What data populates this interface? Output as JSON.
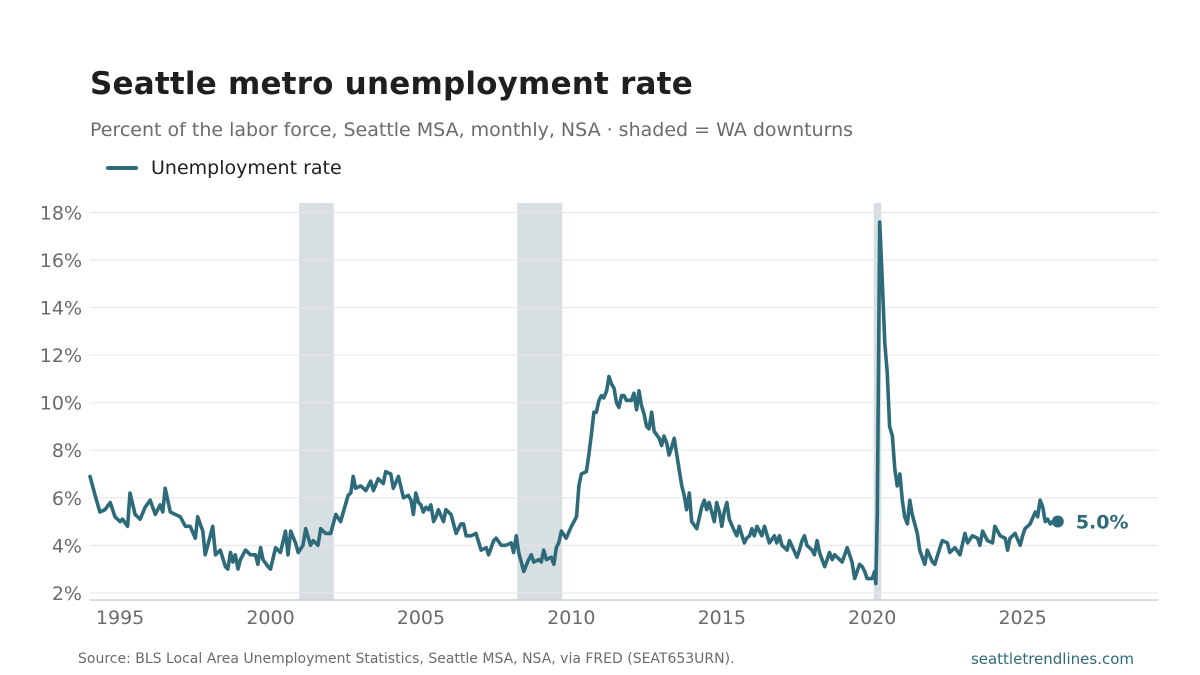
{
  "header": {
    "title": "Seattle metro unemployment rate",
    "subtitle": "Percent of the labor force, Seattle MSA, monthly, NSA · shaded = WA downturns"
  },
  "legend": {
    "label": "Unemployment rate"
  },
  "footer": {
    "source": "Source: BLS Local Area Unemployment Statistics, Seattle MSA, NSA, via FRED (SEAT653URN).",
    "brand": "seattletrendlines.com"
  },
  "colors": {
    "line": "#2e6b7a",
    "shade": "#d8dfe3",
    "grid": "#e6e6e6"
  },
  "chart_data": {
    "type": "line",
    "title": "Seattle metro unemployment rate",
    "xlabel": "",
    "ylabel": "",
    "x_ticks": [
      1995,
      2000,
      2005,
      2010,
      2015,
      2020,
      2025
    ],
    "y_ticks": [
      2,
      4,
      6,
      8,
      10,
      12,
      14,
      16,
      18
    ],
    "y_tick_labels": [
      "2%",
      "4%",
      "6%",
      "8%",
      "10%",
      "12%",
      "14%",
      "16%",
      "18%"
    ],
    "xlim": [
      1994.0,
      2029.5
    ],
    "ylim": [
      1.7,
      18.4
    ],
    "grid": "horizontal",
    "legend_position": "top-left",
    "shaded_periods": [
      {
        "start": 2000.95,
        "end": 2002.1
      },
      {
        "start": 2008.2,
        "end": 2009.7
      },
      {
        "start": 2020.05,
        "end": 2020.3
      }
    ],
    "end_label": "5.0%",
    "series": [
      {
        "name": "Unemployment rate",
        "points": [
          [
            1994.0,
            6.9
          ],
          [
            1994.17,
            6.1
          ],
          [
            1994.33,
            5.4
          ],
          [
            1994.5,
            5.5
          ],
          [
            1994.67,
            5.8
          ],
          [
            1994.83,
            5.2
          ],
          [
            1995.0,
            5.0
          ],
          [
            1995.08,
            5.1
          ],
          [
            1995.25,
            4.8
          ],
          [
            1995.33,
            6.2
          ],
          [
            1995.5,
            5.3
          ],
          [
            1995.67,
            5.1
          ],
          [
            1995.83,
            5.6
          ],
          [
            1996.0,
            5.9
          ],
          [
            1996.17,
            5.3
          ],
          [
            1996.33,
            5.7
          ],
          [
            1996.42,
            5.4
          ],
          [
            1996.5,
            6.4
          ],
          [
            1996.67,
            5.4
          ],
          [
            1996.83,
            5.3
          ],
          [
            1997.0,
            5.2
          ],
          [
            1997.17,
            4.8
          ],
          [
            1997.33,
            4.8
          ],
          [
            1997.5,
            4.3
          ],
          [
            1997.58,
            5.2
          ],
          [
            1997.75,
            4.6
          ],
          [
            1997.83,
            3.6
          ],
          [
            1998.0,
            4.4
          ],
          [
            1998.08,
            4.8
          ],
          [
            1998.17,
            3.6
          ],
          [
            1998.33,
            3.8
          ],
          [
            1998.5,
            3.1
          ],
          [
            1998.58,
            3.0
          ],
          [
            1998.67,
            3.7
          ],
          [
            1998.75,
            3.3
          ],
          [
            1998.83,
            3.6
          ],
          [
            1998.92,
            3.0
          ],
          [
            1999.0,
            3.4
          ],
          [
            1999.17,
            3.8
          ],
          [
            1999.33,
            3.6
          ],
          [
            1999.5,
            3.6
          ],
          [
            1999.58,
            3.2
          ],
          [
            1999.67,
            3.9
          ],
          [
            1999.75,
            3.4
          ],
          [
            1999.92,
            3.1
          ],
          [
            2000.0,
            3.0
          ],
          [
            2000.17,
            3.9
          ],
          [
            2000.33,
            3.7
          ],
          [
            2000.5,
            4.6
          ],
          [
            2000.58,
            3.6
          ],
          [
            2000.67,
            4.6
          ],
          [
            2000.83,
            4.1
          ],
          [
            2000.92,
            3.7
          ],
          [
            2001.08,
            4.0
          ],
          [
            2001.17,
            4.7
          ],
          [
            2001.33,
            4.0
          ],
          [
            2001.42,
            4.2
          ],
          [
            2001.58,
            4.0
          ],
          [
            2001.67,
            4.7
          ],
          [
            2001.83,
            4.5
          ],
          [
            2002.0,
            4.5
          ],
          [
            2002.17,
            5.3
          ],
          [
            2002.33,
            5.0
          ],
          [
            2002.58,
            6.1
          ],
          [
            2002.67,
            6.2
          ],
          [
            2002.75,
            6.9
          ],
          [
            2002.83,
            6.4
          ],
          [
            2003.0,
            6.5
          ],
          [
            2003.17,
            6.3
          ],
          [
            2003.33,
            6.7
          ],
          [
            2003.42,
            6.3
          ],
          [
            2003.58,
            6.8
          ],
          [
            2003.75,
            6.6
          ],
          [
            2003.83,
            7.1
          ],
          [
            2004.0,
            7.0
          ],
          [
            2004.08,
            6.4
          ],
          [
            2004.25,
            6.9
          ],
          [
            2004.42,
            6.0
          ],
          [
            2004.58,
            6.1
          ],
          [
            2004.67,
            5.9
          ],
          [
            2004.75,
            5.3
          ],
          [
            2004.83,
            6.2
          ],
          [
            2004.92,
            5.8
          ],
          [
            2005.0,
            5.7
          ],
          [
            2005.08,
            5.4
          ],
          [
            2005.17,
            5.6
          ],
          [
            2005.25,
            5.5
          ],
          [
            2005.33,
            5.7
          ],
          [
            2005.42,
            5.0
          ],
          [
            2005.5,
            5.2
          ],
          [
            2005.58,
            5.5
          ],
          [
            2005.75,
            5.0
          ],
          [
            2005.83,
            5.5
          ],
          [
            2006.0,
            5.3
          ],
          [
            2006.17,
            4.5
          ],
          [
            2006.33,
            4.9
          ],
          [
            2006.42,
            4.9
          ],
          [
            2006.5,
            4.4
          ],
          [
            2006.67,
            4.4
          ],
          [
            2006.83,
            4.5
          ],
          [
            2007.0,
            3.8
          ],
          [
            2007.17,
            3.9
          ],
          [
            2007.25,
            3.6
          ],
          [
            2007.42,
            4.2
          ],
          [
            2007.5,
            4.3
          ],
          [
            2007.67,
            4.0
          ],
          [
            2007.83,
            4.0
          ],
          [
            2008.0,
            4.1
          ],
          [
            2008.08,
            3.7
          ],
          [
            2008.17,
            4.4
          ],
          [
            2008.25,
            3.7
          ],
          [
            2008.42,
            2.9
          ],
          [
            2008.58,
            3.4
          ],
          [
            2008.67,
            3.6
          ],
          [
            2008.75,
            3.3
          ],
          [
            2008.92,
            3.4
          ],
          [
            2009.0,
            3.3
          ],
          [
            2009.08,
            3.8
          ],
          [
            2009.17,
            3.4
          ],
          [
            2009.33,
            3.5
          ],
          [
            2009.42,
            3.2
          ],
          [
            2009.5,
            3.9
          ],
          [
            2009.58,
            4.1
          ],
          [
            2009.67,
            4.6
          ],
          [
            2009.83,
            4.3
          ],
          [
            2010.0,
            4.8
          ],
          [
            2010.17,
            5.2
          ],
          [
            2010.25,
            6.5
          ],
          [
            2010.33,
            7.0
          ],
          [
            2010.5,
            7.1
          ],
          [
            2010.58,
            7.8
          ],
          [
            2010.67,
            8.7
          ],
          [
            2010.75,
            9.6
          ],
          [
            2010.83,
            9.6
          ],
          [
            2010.92,
            10.1
          ],
          [
            2011.0,
            10.3
          ],
          [
            2011.08,
            10.2
          ],
          [
            2011.17,
            10.5
          ],
          [
            2011.25,
            11.1
          ],
          [
            2011.33,
            10.8
          ],
          [
            2011.42,
            10.6
          ],
          [
            2011.5,
            10.0
          ],
          [
            2011.58,
            9.8
          ],
          [
            2011.67,
            10.3
          ],
          [
            2011.75,
            10.3
          ],
          [
            2011.83,
            10.1
          ],
          [
            2012.0,
            10.1
          ],
          [
            2012.08,
            10.4
          ],
          [
            2012.17,
            9.7
          ],
          [
            2012.25,
            10.5
          ],
          [
            2012.33,
            9.9
          ],
          [
            2012.42,
            9.5
          ],
          [
            2012.5,
            9.0
          ],
          [
            2012.58,
            8.9
          ],
          [
            2012.67,
            9.6
          ],
          [
            2012.75,
            8.8
          ],
          [
            2012.92,
            8.5
          ],
          [
            2013.0,
            8.2
          ],
          [
            2013.08,
            8.6
          ],
          [
            2013.17,
            8.3
          ],
          [
            2013.25,
            7.8
          ],
          [
            2013.33,
            8.1
          ],
          [
            2013.42,
            8.5
          ],
          [
            2013.58,
            7.2
          ],
          [
            2013.67,
            6.5
          ],
          [
            2013.75,
            6.1
          ],
          [
            2013.83,
            5.5
          ],
          [
            2013.92,
            6.2
          ],
          [
            2014.0,
            5.0
          ],
          [
            2014.17,
            4.7
          ],
          [
            2014.33,
            5.6
          ],
          [
            2014.42,
            5.9
          ],
          [
            2014.5,
            5.5
          ],
          [
            2014.58,
            5.8
          ],
          [
            2014.75,
            5.0
          ],
          [
            2014.83,
            5.8
          ],
          [
            2014.92,
            5.4
          ],
          [
            2015.0,
            4.8
          ],
          [
            2015.08,
            5.4
          ],
          [
            2015.17,
            5.8
          ],
          [
            2015.25,
            5.1
          ],
          [
            2015.42,
            4.6
          ],
          [
            2015.5,
            4.4
          ],
          [
            2015.58,
            4.8
          ],
          [
            2015.75,
            4.1
          ],
          [
            2015.83,
            4.3
          ],
          [
            2015.92,
            4.4
          ],
          [
            2016.0,
            4.7
          ],
          [
            2016.08,
            4.4
          ],
          [
            2016.17,
            4.8
          ],
          [
            2016.33,
            4.4
          ],
          [
            2016.42,
            4.8
          ],
          [
            2016.58,
            4.1
          ],
          [
            2016.75,
            4.4
          ],
          [
            2016.83,
            4.1
          ],
          [
            2016.92,
            4.4
          ],
          [
            2017.0,
            4.0
          ],
          [
            2017.17,
            3.8
          ],
          [
            2017.25,
            4.2
          ],
          [
            2017.5,
            3.5
          ],
          [
            2017.58,
            3.8
          ],
          [
            2017.67,
            4.2
          ],
          [
            2017.75,
            4.4
          ],
          [
            2017.83,
            4.0
          ],
          [
            2018.0,
            3.8
          ],
          [
            2018.08,
            3.6
          ],
          [
            2018.17,
            4.2
          ],
          [
            2018.25,
            3.7
          ],
          [
            2018.42,
            3.1
          ],
          [
            2018.58,
            3.7
          ],
          [
            2018.67,
            3.4
          ],
          [
            2018.75,
            3.6
          ],
          [
            2018.92,
            3.4
          ],
          [
            2019.0,
            3.3
          ],
          [
            2019.17,
            3.9
          ],
          [
            2019.33,
            3.3
          ],
          [
            2019.42,
            2.6
          ],
          [
            2019.58,
            3.2
          ],
          [
            2019.67,
            3.1
          ],
          [
            2019.75,
            2.9
          ],
          [
            2019.83,
            2.6
          ],
          [
            2020.0,
            2.6
          ],
          [
            2020.08,
            2.9
          ],
          [
            2020.12,
            2.4
          ],
          [
            2020.17,
            5.3
          ],
          [
            2020.25,
            17.6
          ],
          [
            2020.33,
            15.3
          ],
          [
            2020.42,
            12.5
          ],
          [
            2020.5,
            11.3
          ],
          [
            2020.58,
            9.0
          ],
          [
            2020.67,
            8.6
          ],
          [
            2020.75,
            7.2
          ],
          [
            2020.83,
            6.5
          ],
          [
            2020.92,
            7.0
          ],
          [
            2021.0,
            5.9
          ],
          [
            2021.08,
            5.2
          ],
          [
            2021.17,
            4.9
          ],
          [
            2021.25,
            5.9
          ],
          [
            2021.33,
            5.3
          ],
          [
            2021.5,
            4.5
          ],
          [
            2021.58,
            3.8
          ],
          [
            2021.75,
            3.2
          ],
          [
            2021.83,
            3.8
          ],
          [
            2022.0,
            3.3
          ],
          [
            2022.08,
            3.2
          ],
          [
            2022.25,
            3.9
          ],
          [
            2022.33,
            4.2
          ],
          [
            2022.5,
            4.1
          ],
          [
            2022.58,
            3.7
          ],
          [
            2022.75,
            3.9
          ],
          [
            2022.92,
            3.6
          ],
          [
            2023.08,
            4.5
          ],
          [
            2023.17,
            4.1
          ],
          [
            2023.33,
            4.4
          ],
          [
            2023.5,
            4.3
          ],
          [
            2023.58,
            4.0
          ],
          [
            2023.67,
            4.6
          ],
          [
            2023.83,
            4.2
          ],
          [
            2024.0,
            4.1
          ],
          [
            2024.08,
            4.8
          ],
          [
            2024.25,
            4.4
          ],
          [
            2024.42,
            4.3
          ],
          [
            2024.5,
            3.8
          ],
          [
            2024.58,
            4.3
          ],
          [
            2024.75,
            4.5
          ],
          [
            2024.92,
            4.0
          ],
          [
            2025.0,
            4.4
          ],
          [
            2025.08,
            4.7
          ],
          [
            2025.25,
            4.9
          ],
          [
            2025.42,
            5.4
          ],
          [
            2025.5,
            5.2
          ],
          [
            2025.58,
            5.9
          ],
          [
            2025.67,
            5.6
          ],
          [
            2025.75,
            5.0
          ],
          [
            2025.83,
            5.1
          ],
          [
            2025.92,
            4.9
          ],
          [
            2026.0,
            5.0
          ],
          [
            2026.08,
            5.0
          ],
          [
            2026.17,
            5.0
          ]
        ]
      }
    ]
  }
}
